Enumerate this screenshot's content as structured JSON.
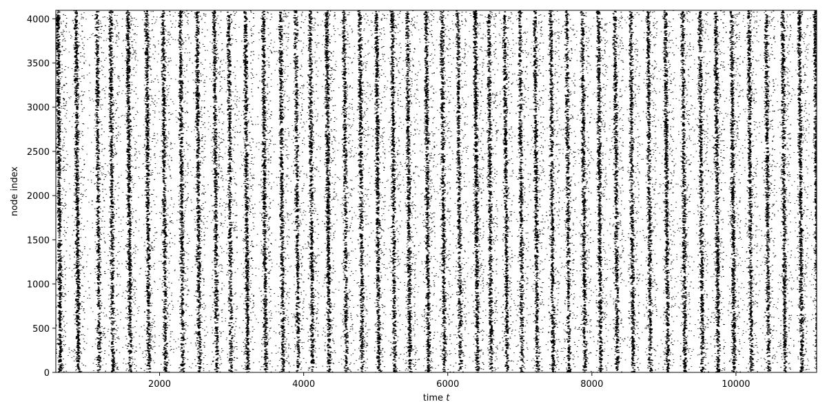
{
  "chart_data": {
    "type": "scatter",
    "title": "",
    "xlabel": "time",
    "xlabel_var": "t",
    "ylabel": "node index",
    "xlim": [
      560,
      11120
    ],
    "ylim": [
      0,
      4096
    ],
    "x_ticks": [
      2000,
      4000,
      6000,
      8000,
      10000
    ],
    "x_tick_labels": [
      "2000",
      "4000",
      "6000",
      "8000",
      "10000"
    ],
    "y_ticks": [
      0,
      500,
      1000,
      1500,
      2000,
      2500,
      3000,
      3500,
      4000
    ],
    "y_tick_labels": [
      "0",
      "500",
      "1000",
      "1500",
      "2000",
      "2500",
      "3000",
      "3500",
      "4000"
    ],
    "grid": false,
    "marker_color": "#000000",
    "series": [
      {
        "kind": "spike raster — dense vertical bands of spike events across all nodes (bands slant slightly: later at low node index)",
        "band_times": [
          590,
          840,
          1130,
          1320,
          1560,
          1820,
          2050,
          2290,
          2520,
          2760,
          2960,
          3190,
          3440,
          3680,
          3890,
          4090,
          4320,
          4560,
          4780,
          5010,
          5230,
          5440,
          5700,
          5920,
          6140,
          6380,
          6570,
          6790,
          7000,
          7210,
          7430,
          7650,
          7870,
          8090,
          8320,
          8540,
          8780,
          9020,
          9260,
          9500,
          9720,
          9940,
          10180,
          10420,
          10650,
          10880,
          11100
        ],
        "band_strength": [
          1,
          1,
          0.7,
          0.8,
          1,
          0.9,
          0.8,
          0.8,
          0.9,
          0.8,
          0.7,
          0.9,
          0.9,
          0.8,
          0.7,
          0.8,
          1,
          0.7,
          0.8,
          0.9,
          0.8,
          0.9,
          0.9,
          0.8,
          0.7,
          1,
          0.8,
          0.8,
          0.7,
          0.8,
          0.8,
          0.7,
          0.8,
          0.9,
          0.8,
          0.8,
          0.8,
          0.9,
          0.8,
          0.8,
          0.9,
          0.9,
          0.8,
          0.8,
          0.8,
          0.9,
          1
        ]
      }
    ]
  }
}
